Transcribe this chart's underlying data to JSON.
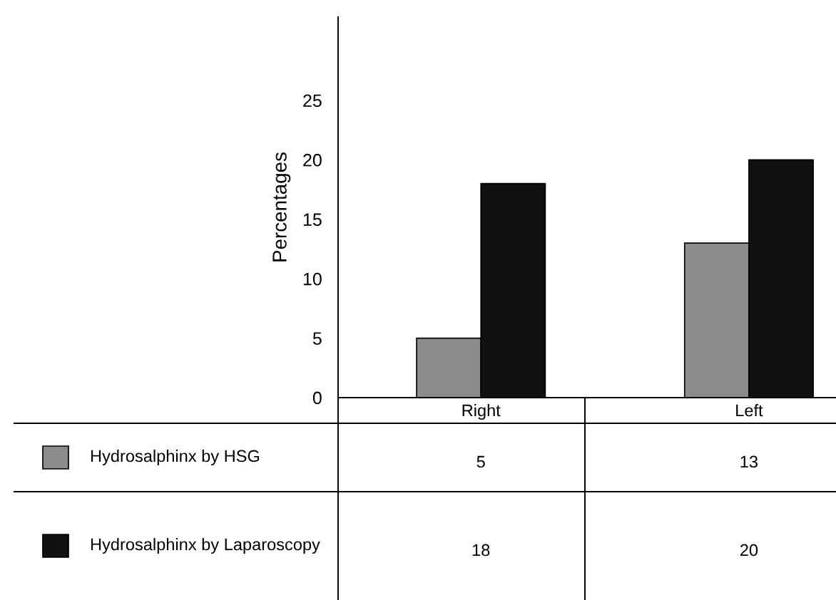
{
  "chart_data": {
    "type": "bar",
    "ylabel": "Percentages",
    "categories": [
      "Right",
      "Left"
    ],
    "series": [
      {
        "name": "Hydrosalphinx by HSG",
        "color": "#8c8c8c",
        "values": [
          5,
          13
        ]
      },
      {
        "name": "Hydrosalphinx by Laparoscopy",
        "color": "#111111",
        "values": [
          18,
          20
        ]
      }
    ],
    "ylim": [
      0,
      32
    ],
    "yticks": [
      0,
      5,
      10,
      15,
      20,
      25
    ],
    "grid": false,
    "legend": "bottom",
    "data_labels": true
  }
}
